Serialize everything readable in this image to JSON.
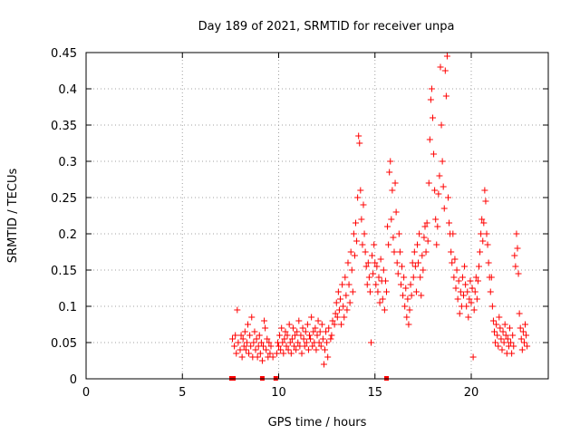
{
  "chart_data": {
    "type": "scatter",
    "title": "Day 189 of 2021, SRMTID for receiver unpa",
    "xlabel": "GPS time / hours",
    "ylabel": "SRMTID / TECUs",
    "xlim": [
      0,
      24
    ],
    "ylim": [
      0,
      0.45
    ],
    "xticks": [
      0,
      5,
      10,
      15,
      20
    ],
    "xtick_labels": [
      "0",
      "5",
      "10",
      "15",
      "20"
    ],
    "yticks": [
      0,
      0.05,
      0.1,
      0.15,
      0.2,
      0.25,
      0.3,
      0.35,
      0.4,
      0.45
    ],
    "ytick_labels": [
      "0",
      "0.05",
      "0.1",
      "0.15",
      "0.2",
      "0.25",
      "0.3",
      "0.35",
      "0.4",
      "0.45"
    ],
    "grid": true,
    "marker": "+",
    "color": "#ff0000",
    "points": [
      [
        7.6,
        0.055
      ],
      [
        7.7,
        0.045
      ],
      [
        7.75,
        0.06
      ],
      [
        7.8,
        0.035
      ],
      [
        7.85,
        0.095
      ],
      [
        7.9,
        0.05
      ],
      [
        8.0,
        0.04
      ],
      [
        8.05,
        0.06
      ],
      [
        8.1,
        0.03
      ],
      [
        8.15,
        0.055
      ],
      [
        8.2,
        0.045
      ],
      [
        8.25,
        0.065
      ],
      [
        8.3,
        0.04
      ],
      [
        8.35,
        0.05
      ],
      [
        8.4,
        0.075
      ],
      [
        8.45,
        0.035
      ],
      [
        8.5,
        0.06
      ],
      [
        8.55,
        0.045
      ],
      [
        8.6,
        0.085
      ],
      [
        8.65,
        0.03
      ],
      [
        8.7,
        0.05
      ],
      [
        8.75,
        0.065
      ],
      [
        8.8,
        0.04
      ],
      [
        8.85,
        0.055
      ],
      [
        8.9,
        0.03
      ],
      [
        8.95,
        0.045
      ],
      [
        9.0,
        0.06
      ],
      [
        9.05,
        0.035
      ],
      [
        9.1,
        0.05
      ],
      [
        9.15,
        0.025
      ],
      [
        9.2,
        0.045
      ],
      [
        9.25,
        0.08
      ],
      [
        9.3,
        0.07
      ],
      [
        9.35,
        0.04
      ],
      [
        9.4,
        0.055
      ],
      [
        9.45,
        0.03
      ],
      [
        9.5,
        0.05
      ],
      [
        9.55,
        0.035
      ],
      [
        9.6,
        0.045
      ],
      [
        9.7,
        0.03
      ],
      [
        9.9,
        0.035
      ],
      [
        9.95,
        0.05
      ],
      [
        10.0,
        0.045
      ],
      [
        10.05,
        0.06
      ],
      [
        10.1,
        0.04
      ],
      [
        10.15,
        0.07
      ],
      [
        10.2,
        0.05
      ],
      [
        10.25,
        0.035
      ],
      [
        10.3,
        0.055
      ],
      [
        10.35,
        0.065
      ],
      [
        10.4,
        0.045
      ],
      [
        10.45,
        0.06
      ],
      [
        10.5,
        0.04
      ],
      [
        10.55,
        0.075
      ],
      [
        10.6,
        0.05
      ],
      [
        10.65,
        0.035
      ],
      [
        10.7,
        0.055
      ],
      [
        10.75,
        0.07
      ],
      [
        10.8,
        0.045
      ],
      [
        10.85,
        0.06
      ],
      [
        10.9,
        0.04
      ],
      [
        10.95,
        0.065
      ],
      [
        11.0,
        0.05
      ],
      [
        11.05,
        0.08
      ],
      [
        11.1,
        0.045
      ],
      [
        11.15,
        0.06
      ],
      [
        11.2,
        0.035
      ],
      [
        11.25,
        0.07
      ],
      [
        11.3,
        0.055
      ],
      [
        11.35,
        0.045
      ],
      [
        11.4,
        0.065
      ],
      [
        11.45,
        0.05
      ],
      [
        11.5,
        0.075
      ],
      [
        11.55,
        0.04
      ],
      [
        11.6,
        0.06
      ],
      [
        11.65,
        0.055
      ],
      [
        11.7,
        0.085
      ],
      [
        11.75,
        0.045
      ],
      [
        11.8,
        0.065
      ],
      [
        11.85,
        0.05
      ],
      [
        11.9,
        0.07
      ],
      [
        11.95,
        0.04
      ],
      [
        12.0,
        0.06
      ],
      [
        12.05,
        0.08
      ],
      [
        12.1,
        0.05
      ],
      [
        12.15,
        0.065
      ],
      [
        12.2,
        0.045
      ],
      [
        12.25,
        0.075
      ],
      [
        12.3,
        0.055
      ],
      [
        12.35,
        0.02
      ],
      [
        12.4,
        0.04
      ],
      [
        12.45,
        0.065
      ],
      [
        12.5,
        0.05
      ],
      [
        12.55,
        0.03
      ],
      [
        12.6,
        0.07
      ],
      [
        12.7,
        0.055
      ],
      [
        12.75,
        0.06
      ],
      [
        12.8,
        0.08
      ],
      [
        12.9,
        0.075
      ],
      [
        12.95,
        0.09
      ],
      [
        13.0,
        0.105
      ],
      [
        13.05,
        0.085
      ],
      [
        13.1,
        0.12
      ],
      [
        13.15,
        0.095
      ],
      [
        13.2,
        0.11
      ],
      [
        13.25,
        0.075
      ],
      [
        13.3,
        0.13
      ],
      [
        13.35,
        0.1
      ],
      [
        13.4,
        0.085
      ],
      [
        13.45,
        0.14
      ],
      [
        13.5,
        0.115
      ],
      [
        13.55,
        0.095
      ],
      [
        13.6,
        0.16
      ],
      [
        13.65,
        0.13
      ],
      [
        13.7,
        0.105
      ],
      [
        13.75,
        0.175
      ],
      [
        13.8,
        0.15
      ],
      [
        13.85,
        0.12
      ],
      [
        13.9,
        0.2
      ],
      [
        13.95,
        0.17
      ],
      [
        14.0,
        0.215
      ],
      [
        14.05,
        0.19
      ],
      [
        14.1,
        0.25
      ],
      [
        14.15,
        0.335
      ],
      [
        14.2,
        0.325
      ],
      [
        14.25,
        0.26
      ],
      [
        14.3,
        0.22
      ],
      [
        14.35,
        0.185
      ],
      [
        14.4,
        0.24
      ],
      [
        14.45,
        0.2
      ],
      [
        14.5,
        0.175
      ],
      [
        14.55,
        0.155
      ],
      [
        14.6,
        0.13
      ],
      [
        14.65,
        0.16
      ],
      [
        14.7,
        0.14
      ],
      [
        14.75,
        0.12
      ],
      [
        14.8,
        0.05
      ],
      [
        14.85,
        0.17
      ],
      [
        14.9,
        0.145
      ],
      [
        14.95,
        0.185
      ],
      [
        15.0,
        0.16
      ],
      [
        15.05,
        0.13
      ],
      [
        15.1,
        0.155
      ],
      [
        15.15,
        0.12
      ],
      [
        15.2,
        0.14
      ],
      [
        15.25,
        0.105
      ],
      [
        15.3,
        0.165
      ],
      [
        15.35,
        0.135
      ],
      [
        15.4,
        0.11
      ],
      [
        15.45,
        0.15
      ],
      [
        15.5,
        0.095
      ],
      [
        15.55,
        0.135
      ],
      [
        15.6,
        0.12
      ],
      [
        15.65,
        0.21
      ],
      [
        15.7,
        0.185
      ],
      [
        15.75,
        0.285
      ],
      [
        15.8,
        0.3
      ],
      [
        15.85,
        0.22
      ],
      [
        15.9,
        0.26
      ],
      [
        15.95,
        0.195
      ],
      [
        16.0,
        0.175
      ],
      [
        16.05,
        0.27
      ],
      [
        16.1,
        0.23
      ],
      [
        16.15,
        0.16
      ],
      [
        16.2,
        0.145
      ],
      [
        16.25,
        0.2
      ],
      [
        16.3,
        0.175
      ],
      [
        16.35,
        0.13
      ],
      [
        16.4,
        0.155
      ],
      [
        16.45,
        0.115
      ],
      [
        16.5,
        0.14
      ],
      [
        16.55,
        0.1
      ],
      [
        16.6,
        0.125
      ],
      [
        16.65,
        0.085
      ],
      [
        16.7,
        0.11
      ],
      [
        16.75,
        0.075
      ],
      [
        16.8,
        0.095
      ],
      [
        16.85,
        0.13
      ],
      [
        16.9,
        0.115
      ],
      [
        16.95,
        0.16
      ],
      [
        17.0,
        0.14
      ],
      [
        17.05,
        0.175
      ],
      [
        17.1,
        0.155
      ],
      [
        17.15,
        0.12
      ],
      [
        17.2,
        0.185
      ],
      [
        17.25,
        0.16
      ],
      [
        17.3,
        0.2
      ],
      [
        17.35,
        0.14
      ],
      [
        17.4,
        0.115
      ],
      [
        17.45,
        0.17
      ],
      [
        17.5,
        0.15
      ],
      [
        17.55,
        0.195
      ],
      [
        17.6,
        0.21
      ],
      [
        17.65,
        0.175
      ],
      [
        17.7,
        0.215
      ],
      [
        17.75,
        0.19
      ],
      [
        17.8,
        0.27
      ],
      [
        17.85,
        0.33
      ],
      [
        17.9,
        0.385
      ],
      [
        17.95,
        0.4
      ],
      [
        18.0,
        0.36
      ],
      [
        18.05,
        0.31
      ],
      [
        18.1,
        0.26
      ],
      [
        18.15,
        0.22
      ],
      [
        18.2,
        0.185
      ],
      [
        18.25,
        0.21
      ],
      [
        18.3,
        0.255
      ],
      [
        18.35,
        0.28
      ],
      [
        18.4,
        0.43
      ],
      [
        18.45,
        0.35
      ],
      [
        18.5,
        0.3
      ],
      [
        18.55,
        0.265
      ],
      [
        18.6,
        0.235
      ],
      [
        18.65,
        0.425
      ],
      [
        18.7,
        0.39
      ],
      [
        18.75,
        0.445
      ],
      [
        18.8,
        0.25
      ],
      [
        18.85,
        0.215
      ],
      [
        18.9,
        0.2
      ],
      [
        18.95,
        0.175
      ],
      [
        19.0,
        0.16
      ],
      [
        19.05,
        0.2
      ],
      [
        19.1,
        0.14
      ],
      [
        19.15,
        0.165
      ],
      [
        19.2,
        0.125
      ],
      [
        19.25,
        0.15
      ],
      [
        19.3,
        0.11
      ],
      [
        19.35,
        0.135
      ],
      [
        19.4,
        0.09
      ],
      [
        19.45,
        0.12
      ],
      [
        19.5,
        0.1
      ],
      [
        19.55,
        0.14
      ],
      [
        19.6,
        0.115
      ],
      [
        19.65,
        0.155
      ],
      [
        19.7,
        0.13
      ],
      [
        19.75,
        0.1
      ],
      [
        19.8,
        0.12
      ],
      [
        19.85,
        0.085
      ],
      [
        19.9,
        0.11
      ],
      [
        19.95,
        0.135
      ],
      [
        20.0,
        0.105
      ],
      [
        20.05,
        0.125
      ],
      [
        20.1,
        0.03
      ],
      [
        20.15,
        0.095
      ],
      [
        20.2,
        0.12
      ],
      [
        20.25,
        0.14
      ],
      [
        20.3,
        0.11
      ],
      [
        20.35,
        0.135
      ],
      [
        20.4,
        0.155
      ],
      [
        20.45,
        0.175
      ],
      [
        20.5,
        0.2
      ],
      [
        20.55,
        0.22
      ],
      [
        20.6,
        0.19
      ],
      [
        20.65,
        0.215
      ],
      [
        20.7,
        0.26
      ],
      [
        20.75,
        0.245
      ],
      [
        20.8,
        0.2
      ],
      [
        20.85,
        0.185
      ],
      [
        20.9,
        0.16
      ],
      [
        20.95,
        0.14
      ],
      [
        21.0,
        0.12
      ],
      [
        21.05,
        0.14
      ],
      [
        21.1,
        0.1
      ],
      [
        21.15,
        0.08
      ],
      [
        21.2,
        0.065
      ],
      [
        21.25,
        0.05
      ],
      [
        21.3,
        0.075
      ],
      [
        21.35,
        0.06
      ],
      [
        21.4,
        0.045
      ],
      [
        21.45,
        0.085
      ],
      [
        21.5,
        0.07
      ],
      [
        21.55,
        0.055
      ],
      [
        21.6,
        0.04
      ],
      [
        21.65,
        0.065
      ],
      [
        21.7,
        0.05
      ],
      [
        21.75,
        0.075
      ],
      [
        21.8,
        0.06
      ],
      [
        21.85,
        0.035
      ],
      [
        21.9,
        0.055
      ],
      [
        21.95,
        0.045
      ],
      [
        22.0,
        0.07
      ],
      [
        22.05,
        0.05
      ],
      [
        22.1,
        0.035
      ],
      [
        22.15,
        0.06
      ],
      [
        22.2,
        0.045
      ],
      [
        22.25,
        0.17
      ],
      [
        22.3,
        0.155
      ],
      [
        22.35,
        0.2
      ],
      [
        22.4,
        0.18
      ],
      [
        22.45,
        0.145
      ],
      [
        22.5,
        0.09
      ],
      [
        22.55,
        0.07
      ],
      [
        22.6,
        0.055
      ],
      [
        22.65,
        0.04
      ],
      [
        22.7,
        0.065
      ],
      [
        22.75,
        0.05
      ],
      [
        22.8,
        0.075
      ],
      [
        22.85,
        0.06
      ],
      [
        22.9,
        0.045
      ]
    ],
    "axis_markers_x": [
      7.55,
      7.65,
      9.15,
      9.85,
      15.6
    ]
  }
}
